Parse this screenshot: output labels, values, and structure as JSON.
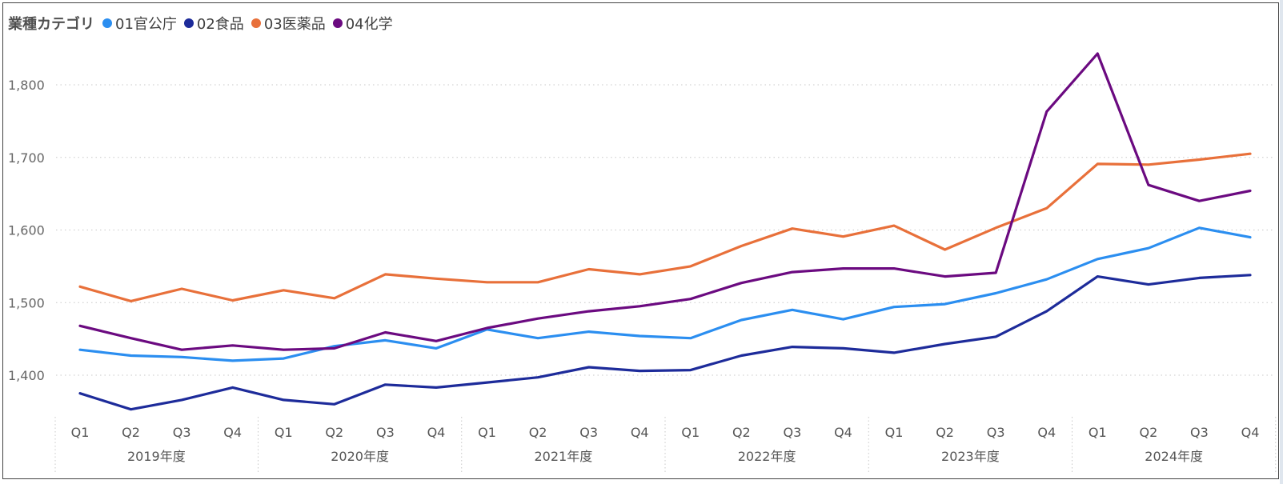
{
  "chart_data": {
    "type": "line",
    "legend_title": "業種カテゴリ",
    "groups": [
      "2019年度",
      "2020年度",
      "2021年度",
      "2022年度",
      "2023年度",
      "2024年度"
    ],
    "quarters": [
      "Q1",
      "Q2",
      "Q3",
      "Q4"
    ],
    "y_ticks": [
      1400,
      1500,
      1600,
      1700,
      1800
    ],
    "y_tick_labels": [
      "1,400",
      "1,500",
      "1,600",
      "1,700",
      "1,800"
    ],
    "ylim": [
      1350,
      1850
    ],
    "series": [
      {
        "name": "01官公庁",
        "color": "#2b8ef0",
        "values": [
          1435,
          1427,
          1425,
          1420,
          1423,
          1440,
          1448,
          1437,
          1463,
          1451,
          1460,
          1454,
          1451,
          1476,
          1490,
          1477,
          1494,
          1498,
          1513,
          1532,
          1560,
          1575,
          1603,
          1590
        ]
      },
      {
        "name": "02食品",
        "color": "#1d2b9a",
        "values": [
          1375,
          1353,
          1366,
          1383,
          1366,
          1360,
          1387,
          1383,
          1390,
          1397,
          1411,
          1406,
          1407,
          1427,
          1439,
          1437,
          1431,
          1443,
          1453,
          1488,
          1536,
          1525,
          1534,
          1538
        ]
      },
      {
        "name": "03医薬品",
        "color": "#e8703a",
        "values": [
          1522,
          1502,
          1519,
          1503,
          1517,
          1506,
          1539,
          1533,
          1528,
          1528,
          1546,
          1539,
          1550,
          1578,
          1602,
          1591,
          1606,
          1573,
          1603,
          1630,
          1691,
          1690,
          1697,
          1705
        ]
      },
      {
        "name": "04化学",
        "color": "#6b0a80",
        "values": [
          1468,
          1451,
          1435,
          1441,
          1435,
          1437,
          1459,
          1447,
          1465,
          1478,
          1488,
          1495,
          1505,
          1527,
          1542,
          1547,
          1547,
          1536,
          1541,
          1763,
          1843,
          1662,
          1640,
          1654
        ]
      }
    ]
  }
}
